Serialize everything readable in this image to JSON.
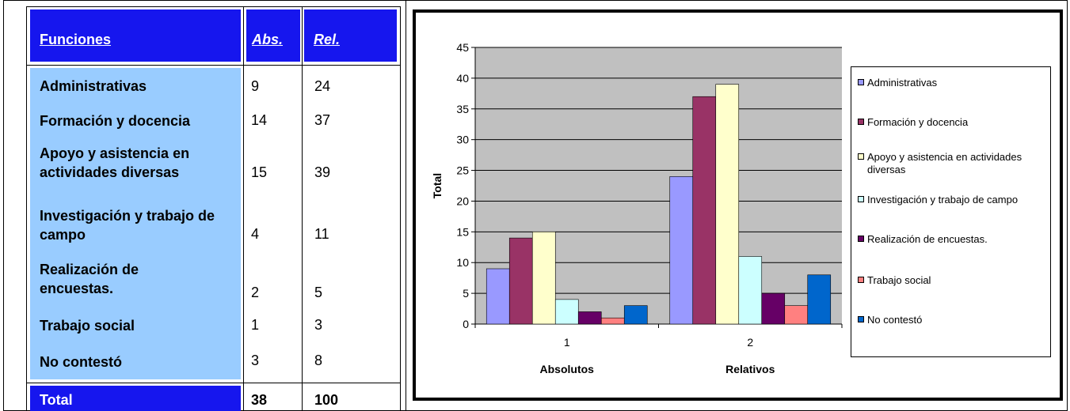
{
  "table": {
    "header": {
      "funciones": "Funciones",
      "abs": "Abs.",
      "rel": "Rel."
    },
    "rows": [
      {
        "label": "Administrativas",
        "abs": "9",
        "rel": "24"
      },
      {
        "label": "Formación y docencia",
        "abs": "14",
        "rel": "37"
      },
      {
        "label": "Apoyo y asistencia en actividades diversas",
        "abs": "15",
        "rel": "39"
      },
      {
        "label": "Investigación y trabajo de campo",
        "abs": "4",
        "rel": "11"
      },
      {
        "label": "Realización de encuestas.",
        "abs": "2",
        "rel": "5"
      },
      {
        "label": "Trabajo social",
        "abs": "1",
        "rel": "3"
      },
      {
        "label": "No contestó",
        "abs": "3",
        "rel": "8"
      }
    ],
    "total": {
      "label": "Total",
      "abs": "38",
      "rel": "100"
    },
    "colors": {
      "header": "#1616ee",
      "label_bg": "#99ccff"
    }
  },
  "chart_data": {
    "type": "bar",
    "categories": [
      "1",
      "2"
    ],
    "category_labels": [
      "Absolutos",
      "Relativos"
    ],
    "ylabel": "Total",
    "ylim": [
      0,
      45
    ],
    "yticks": [
      0,
      5,
      10,
      15,
      20,
      25,
      30,
      35,
      40,
      45
    ],
    "grid": true,
    "plot_bg": "#c0c0c0",
    "legend_position": "right",
    "series": [
      {
        "name": "Administrativas",
        "values": [
          9,
          24
        ],
        "color": "#9999ff"
      },
      {
        "name": "Formación y docencia",
        "values": [
          14,
          37
        ],
        "color": "#993366"
      },
      {
        "name": "Apoyo y asistencia en actividades diversas",
        "values": [
          15,
          39
        ],
        "color": "#ffffcc"
      },
      {
        "name": "Investigación y trabajo de campo",
        "values": [
          4,
          11
        ],
        "color": "#ccffff"
      },
      {
        "name": "Realización de encuestas.",
        "values": [
          2,
          5
        ],
        "color": "#660066"
      },
      {
        "name": "Trabajo social",
        "values": [
          1,
          3
        ],
        "color": "#ff8080"
      },
      {
        "name": "No contestó",
        "values": [
          3,
          8
        ],
        "color": "#0066cc"
      }
    ]
  }
}
